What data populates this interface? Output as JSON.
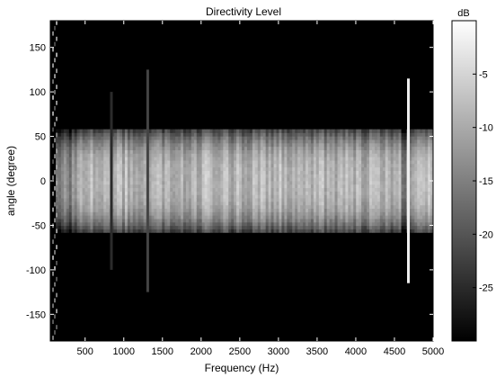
{
  "chart_data": {
    "type": "heatmap",
    "title": "Directivity Level",
    "xlabel": "Frequency (Hz)",
    "ylabel": "angle (degree)",
    "xlim": [
      50,
      5000
    ],
    "ylim": [
      -180,
      180
    ],
    "x_ticks": [
      500,
      1000,
      1500,
      2000,
      2500,
      3000,
      3500,
      4000,
      4500,
      5000
    ],
    "y_ticks": [
      -150,
      -100,
      -50,
      0,
      50,
      100,
      150
    ],
    "colorbar": {
      "label": "dB",
      "range": [
        -30,
        0
      ],
      "ticks": [
        -5,
        -10,
        -15,
        -20,
        -25
      ],
      "colormap": "gray"
    },
    "main_lobe_half_width_deg": 58,
    "features": [
      {
        "kind": "narrow-spike",
        "x": 4680,
        "angle_range": [
          -115,
          115
        ],
        "level_db": -2
      },
      {
        "kind": "faint-streak",
        "x": 1310,
        "angle_range": [
          -125,
          125
        ],
        "level_db": -22
      },
      {
        "kind": "faint-streak",
        "x": 840,
        "angle_range": [
          -100,
          100
        ],
        "level_db": -25
      }
    ],
    "grid": false
  }
}
